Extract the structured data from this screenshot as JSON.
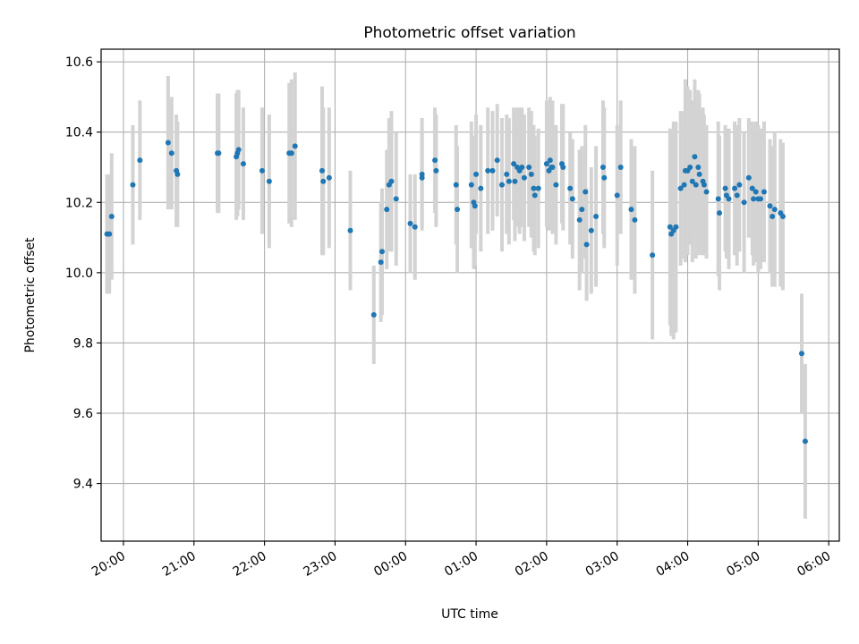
{
  "chart_data": {
    "type": "scatter",
    "title": "Photometric offset variation",
    "xlabel": "UTC time",
    "ylabel": "Photometric offset",
    "x_unit": "UTC time (HH:MM), times after 23:59 fall on the following day",
    "xlim": [
      "19:41",
      "06:09"
    ],
    "ylim": [
      9.236,
      10.636
    ],
    "x_ticks": [
      "20:00",
      "21:00",
      "22:00",
      "23:00",
      "00:00",
      "01:00",
      "02:00",
      "03:00",
      "04:00",
      "05:00",
      "06:00"
    ],
    "y_ticks": [
      "9.4",
      "9.6",
      "9.8",
      "10.0",
      "10.2",
      "10.4",
      "10.6"
    ],
    "grid": true,
    "legend": null,
    "colors": {
      "points": "#1f77b4",
      "errorbars": "#d3d3d3",
      "grid": "#b0b0b0"
    },
    "series": [
      {
        "columns": [
          "time",
          "offset",
          "error"
        ],
        "points": [
          [
            "19:46",
            10.11,
            0.17
          ],
          [
            "19:48",
            10.11,
            0.17
          ],
          [
            "19:50",
            10.16,
            0.18
          ],
          [
            "20:08",
            10.25,
            0.17
          ],
          [
            "20:14",
            10.32,
            0.17
          ],
          [
            "20:38",
            10.37,
            0.19
          ],
          [
            "20:41",
            10.34,
            0.16
          ],
          [
            "20:45",
            10.29,
            0.16
          ],
          [
            "20:46",
            10.28,
            0.15
          ],
          [
            "21:20",
            10.34,
            0.17
          ],
          [
            "21:21",
            10.34,
            0.17
          ],
          [
            "21:36",
            10.33,
            0.18
          ],
          [
            "21:37",
            10.34,
            0.18
          ],
          [
            "21:38",
            10.35,
            0.17
          ],
          [
            "21:42",
            10.31,
            0.16
          ],
          [
            "21:58",
            10.29,
            0.18
          ],
          [
            "22:04",
            10.26,
            0.19
          ],
          [
            "22:21",
            10.34,
            0.2
          ],
          [
            "22:23",
            10.34,
            0.21
          ],
          [
            "22:26",
            10.36,
            0.21
          ],
          [
            "22:49",
            10.29,
            0.24
          ],
          [
            "22:50",
            10.26,
            0.21
          ],
          [
            "22:55",
            10.27,
            0.2
          ],
          [
            "23:13",
            10.12,
            0.17
          ],
          [
            "23:33",
            9.88,
            0.14
          ],
          [
            "23:39",
            10.03,
            0.17
          ],
          [
            "23:40",
            10.06,
            0.18
          ],
          [
            "23:44",
            10.18,
            0.17
          ],
          [
            "23:46",
            10.25,
            0.19
          ],
          [
            "23:48",
            10.26,
            0.2
          ],
          [
            "23:52",
            10.21,
            0.19
          ],
          [
            "00:04",
            10.14,
            0.14
          ],
          [
            "00:08",
            10.13,
            0.15
          ],
          [
            "00:14",
            10.27,
            0.14
          ],
          [
            "00:14",
            10.28,
            0.16
          ],
          [
            "00:25",
            10.32,
            0.15
          ],
          [
            "00:26",
            10.29,
            0.16
          ],
          [
            "00:43",
            10.25,
            0.17
          ],
          [
            "00:44",
            10.18,
            0.18
          ],
          [
            "00:56",
            10.25,
            0.18
          ],
          [
            "00:58",
            10.2,
            0.19
          ],
          [
            "00:59",
            10.19,
            0.17
          ],
          [
            "01:00",
            10.28,
            0.17
          ],
          [
            "01:04",
            10.24,
            0.18
          ],
          [
            "01:10",
            10.29,
            0.18
          ],
          [
            "01:14",
            10.29,
            0.17
          ],
          [
            "01:18",
            10.32,
            0.16
          ],
          [
            "01:22",
            10.25,
            0.19
          ],
          [
            "01:26",
            10.28,
            0.17
          ],
          [
            "01:28",
            10.26,
            0.18
          ],
          [
            "01:32",
            10.31,
            0.16
          ],
          [
            "01:33",
            10.26,
            0.17
          ],
          [
            "01:35",
            10.3,
            0.17
          ],
          [
            "01:37",
            10.29,
            0.18
          ],
          [
            "01:39",
            10.3,
            0.17
          ],
          [
            "01:41",
            10.27,
            0.18
          ],
          [
            "01:45",
            10.3,
            0.17
          ],
          [
            "01:47",
            10.28,
            0.18
          ],
          [
            "01:49",
            10.24,
            0.18
          ],
          [
            "01:50",
            10.22,
            0.17
          ],
          [
            "01:53",
            10.24,
            0.17
          ],
          [
            "02:00",
            10.31,
            0.18
          ],
          [
            "02:02",
            10.29,
            0.17
          ],
          [
            "02:03",
            10.32,
            0.18
          ],
          [
            "02:04",
            10.3,
            0.17
          ],
          [
            "02:05",
            10.3,
            0.19
          ],
          [
            "02:08",
            10.25,
            0.17
          ],
          [
            "02:13",
            10.31,
            0.17
          ],
          [
            "02:14",
            10.3,
            0.18
          ],
          [
            "02:20",
            10.24,
            0.16
          ],
          [
            "02:22",
            10.21,
            0.17
          ],
          [
            "02:28",
            10.15,
            0.2
          ],
          [
            "02:30",
            10.18,
            0.18
          ],
          [
            "02:33",
            10.23,
            0.19
          ],
          [
            "02:34",
            10.08,
            0.16
          ],
          [
            "02:38",
            10.12,
            0.18
          ],
          [
            "02:42",
            10.16,
            0.2
          ],
          [
            "02:48",
            10.3,
            0.19
          ],
          [
            "02:49",
            10.27,
            0.2
          ],
          [
            "03:00",
            10.22,
            0.2
          ],
          [
            "03:03",
            10.3,
            0.19
          ],
          [
            "03:12",
            10.18,
            0.2
          ],
          [
            "03:15",
            10.15,
            0.21
          ],
          [
            "03:30",
            10.05,
            0.24
          ],
          [
            "03:45",
            10.13,
            0.28
          ],
          [
            "03:46",
            10.11,
            0.29
          ],
          [
            "03:48",
            10.12,
            0.31
          ],
          [
            "03:50",
            10.13,
            0.3
          ],
          [
            "03:54",
            10.24,
            0.22
          ],
          [
            "03:57",
            10.25,
            0.21
          ],
          [
            "03:58",
            10.29,
            0.26
          ],
          [
            "04:00",
            10.29,
            0.24
          ],
          [
            "04:02",
            10.3,
            0.22
          ],
          [
            "04:04",
            10.26,
            0.23
          ],
          [
            "04:06",
            10.33,
            0.22
          ],
          [
            "04:07",
            10.25,
            0.21
          ],
          [
            "04:09",
            10.3,
            0.22
          ],
          [
            "04:10",
            10.28,
            0.23
          ],
          [
            "04:13",
            10.26,
            0.21
          ],
          [
            "04:14",
            10.25,
            0.2
          ],
          [
            "04:16",
            10.23,
            0.19
          ],
          [
            "04:26",
            10.21,
            0.22
          ],
          [
            "04:27",
            10.17,
            0.22
          ],
          [
            "04:32",
            10.24,
            0.18
          ],
          [
            "04:33",
            10.22,
            0.18
          ],
          [
            "04:35",
            10.21,
            0.2
          ],
          [
            "04:40",
            10.24,
            0.19
          ],
          [
            "04:42",
            10.22,
            0.2
          ],
          [
            "04:44",
            10.25,
            0.19
          ],
          [
            "04:48",
            10.2,
            0.2
          ],
          [
            "04:52",
            10.27,
            0.17
          ],
          [
            "04:55",
            10.24,
            0.19
          ],
          [
            "04:56",
            10.21,
            0.19
          ],
          [
            "04:58",
            10.23,
            0.2
          ],
          [
            "05:00",
            10.21,
            0.21
          ],
          [
            "05:02",
            10.21,
            0.2
          ],
          [
            "05:05",
            10.23,
            0.2
          ],
          [
            "05:10",
            10.19,
            0.19
          ],
          [
            "05:12",
            10.16,
            0.2
          ],
          [
            "05:14",
            10.18,
            0.22
          ],
          [
            "05:19",
            10.17,
            0.21
          ],
          [
            "05:21",
            10.16,
            0.21
          ],
          [
            "05:37",
            9.77,
            0.17
          ],
          [
            "05:40",
            9.52,
            0.22
          ]
        ]
      }
    ]
  }
}
